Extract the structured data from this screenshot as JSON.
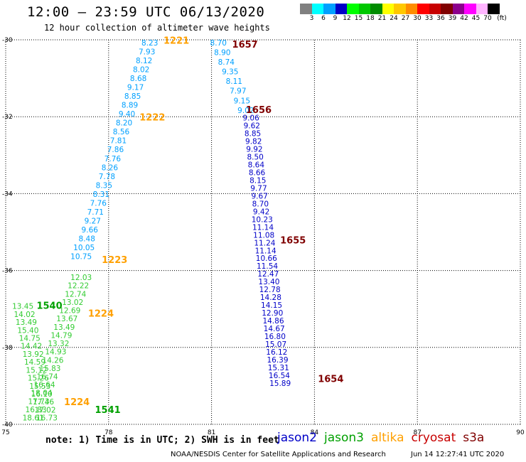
{
  "header": {
    "title": "12:00 — 23:59 UTC 06/13/2020",
    "subtitle": "12 hour collection of altimeter wave heights"
  },
  "color_scale": {
    "labels": [
      "3",
      "6",
      "9",
      "12",
      "15",
      "18",
      "21",
      "24",
      "27",
      "30",
      "33",
      "36",
      "39",
      "42",
      "45",
      "70"
    ],
    "unit": "(ft)",
    "colors": [
      "#808080",
      "#00ffff",
      "#00a0ff",
      "#0000c8",
      "#00ff00",
      "#00c800",
      "#008c00",
      "#ffff00",
      "#ffc800",
      "#ff8c00",
      "#ff0000",
      "#c80000",
      "#800000",
      "#8c008c",
      "#ff00ff",
      "#ffb4ff",
      "#000000"
    ]
  },
  "footer": {
    "note": "note: 1) Time is in UTC; 2) SWH is in feet",
    "credit": "NOAA/NESDIS Center for Satellite Applications and Research",
    "timestamp": "Jun 14 12:27:41 UTC 2020"
  },
  "legend": [
    {
      "name": "jason2",
      "color": "#0000c8"
    },
    {
      "name": "jason3",
      "color": "#00a000"
    },
    {
      "name": "altika",
      "color": "#ffa000"
    },
    {
      "name": "cryosat",
      "color": "#c80000"
    },
    {
      "name": "s3a",
      "color": "#800000"
    }
  ],
  "chart_data": {
    "type": "scatter",
    "title": "12 hour collection of altimeter wave heights",
    "x_axis": {
      "label": "",
      "min": 75,
      "max": 90,
      "ticks": [
        75,
        78,
        81,
        84,
        87,
        90
      ]
    },
    "y_axis": {
      "label": "",
      "min": -40,
      "max": -30,
      "ticks": [
        -30,
        -32,
        -34,
        -36,
        -38,
        -40
      ]
    },
    "grid": true,
    "tracks": [
      {
        "color": "#00a0ff",
        "lon_start": 79.2,
        "lat_start": -30.15,
        "lon_end": 77.2,
        "lat_end": -35.7,
        "values": [
          "8.23",
          "7.93",
          "8.12",
          "8.02",
          "8.68",
          "9.17",
          "8.85",
          "8.89",
          "9.40",
          "8.20",
          "8.56",
          "7.81",
          "7.86",
          "7.76",
          "8.26",
          "7.78",
          "8.35",
          "8.31",
          "7.76",
          "7.71",
          "9.27",
          "9.66",
          "8.48",
          "10.05",
          "10.75"
        ]
      },
      {
        "color": "#00a0ff",
        "lon_start": 81.2,
        "lat_start": -30.15,
        "lon_end": 82.0,
        "lat_end": -31.9,
        "values": [
          "8.70",
          "8.90",
          "8.74",
          "9.35",
          "8.11",
          "7.97",
          "9.15",
          "9.02"
        ]
      },
      {
        "color": "#0000c8",
        "lon_start": 82.15,
        "lat_start": -32.1,
        "lon_end": 83.0,
        "lat_end": -39.0,
        "values": [
          "9.06",
          "9.62",
          "8.85",
          "9.82",
          "9.92",
          "8.50",
          "8.64",
          "8.66",
          "8.15",
          "9.77",
          "9.67",
          "8.70",
          "9.42",
          "10.23",
          "11.14",
          "11.08",
          "11.24",
          "11.14",
          "10.66",
          "11.54",
          "12.47",
          "13.40",
          "12.78",
          "14.28",
          "14.15",
          "12.90",
          "14.86",
          "14.67",
          "16.80",
          "15.07",
          "16.12",
          "16.39",
          "15.31",
          "16.54",
          "15.89"
        ]
      },
      {
        "color": "#33cc33",
        "lon_start": 77.2,
        "lat_start": -36.25,
        "lon_end": 75.8,
        "lat_end": -39.9,
        "values": [
          "12.03",
          "12.22",
          "12.74",
          "13.02",
          "12.69",
          "13.67",
          "13.49",
          "14.79",
          "13.32",
          "14.93",
          "14.26",
          "15.83",
          "16.74",
          "16.64",
          "18.04",
          "17.73",
          "16.83",
          "18.61"
        ]
      },
      {
        "color": "#33cc33",
        "lon_start": 75.5,
        "lat_start": -37.0,
        "lon_end": 76.2,
        "lat_end": -39.9,
        "values": [
          "13.45",
          "14.02",
          "13.49",
          "15.40",
          "14.75",
          "14.42",
          "13.92",
          "14.59",
          "15.12",
          "15.26",
          "15.53",
          "16.10",
          "17.46",
          "17.02",
          "16.73"
        ]
      }
    ],
    "time_labels": [
      {
        "text": "1221",
        "color": "#ffa000",
        "lon": 79.6,
        "lat": -30.1
      },
      {
        "text": "1657",
        "color": "#800000",
        "lon": 81.6,
        "lat": -30.2
      },
      {
        "text": "1656",
        "color": "#800000",
        "lon": 82.0,
        "lat": -31.9
      },
      {
        "text": "1222",
        "color": "#ffa000",
        "lon": 78.9,
        "lat": -32.1
      },
      {
        "text": "1655",
        "color": "#800000",
        "lon": 83.0,
        "lat": -35.3
      },
      {
        "text": "1223",
        "color": "#ffa000",
        "lon": 77.8,
        "lat": -35.8
      },
      {
        "text": "1540",
        "color": "#00a000",
        "lon": 75.9,
        "lat": -37.0
      },
      {
        "text": "1224",
        "color": "#ffa000",
        "lon": 77.4,
        "lat": -37.2
      },
      {
        "text": "1654",
        "color": "#800000",
        "lon": 84.1,
        "lat": -38.9
      },
      {
        "text": "1224",
        "color": "#ffa000",
        "lon": 76.7,
        "lat": -39.5
      },
      {
        "text": "1541",
        "color": "#00a000",
        "lon": 77.6,
        "lat": -39.7
      }
    ]
  }
}
